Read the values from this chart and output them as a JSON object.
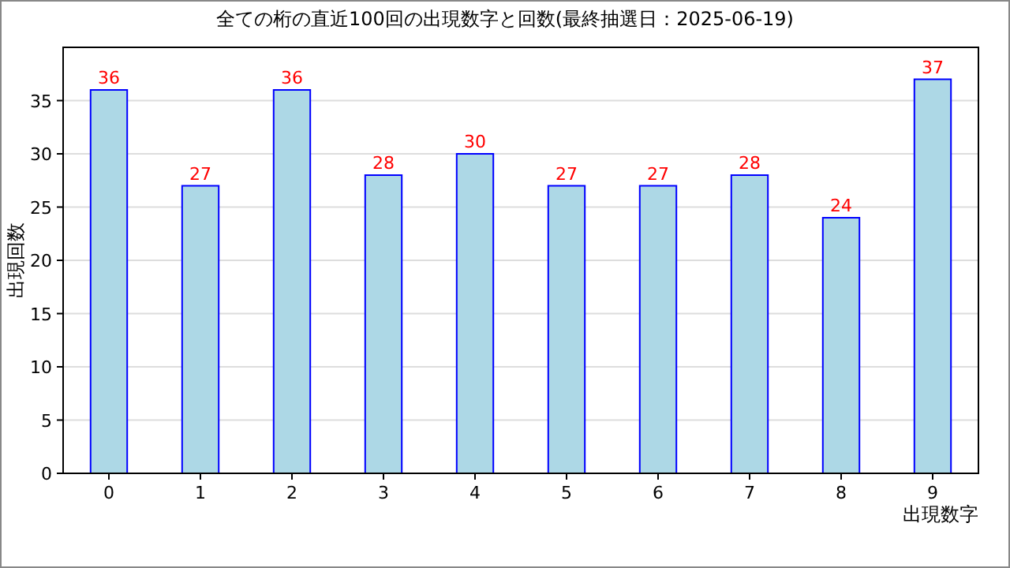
{
  "chart_data": {
    "type": "bar",
    "title": "全ての桁の直近100回の出現数字と回数(最終抽選日：2025-06-19)",
    "xlabel": "出現数字",
    "ylabel": "出現回数",
    "categories": [
      "0",
      "1",
      "2",
      "3",
      "4",
      "5",
      "6",
      "7",
      "8",
      "9"
    ],
    "series": [
      {
        "color": "#add8e6",
        "values": [
          36,
          27,
          36,
          28,
          30,
          27,
          27,
          28,
          24,
          37
        ]
      }
    ],
    "ylim": [
      0,
      40
    ],
    "yticks": [
      0,
      5,
      10,
      15,
      20,
      25,
      30,
      35
    ],
    "grid": "y",
    "data_labels": true
  }
}
